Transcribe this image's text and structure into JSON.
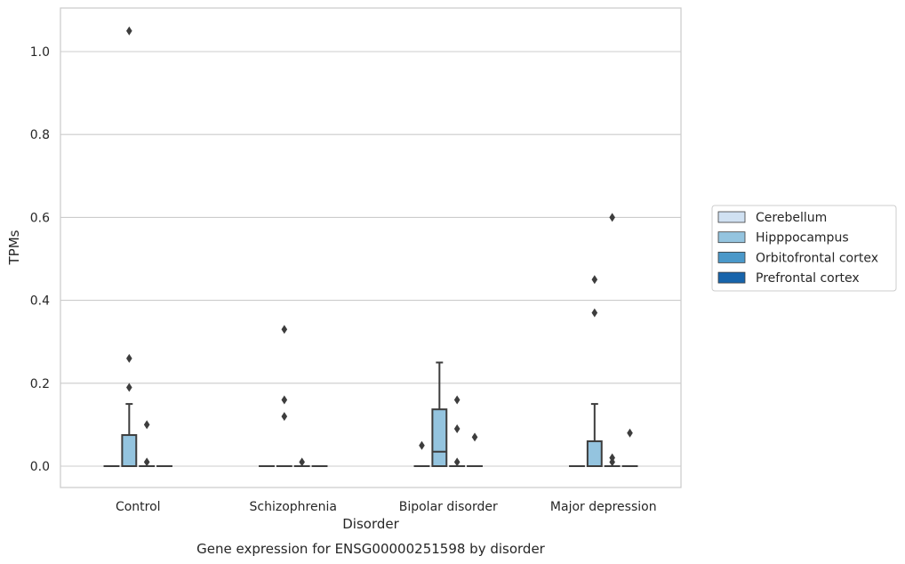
{
  "chart_data": {
    "type": "box",
    "caption": "Gene expression for ENSG00000251598 by disorder",
    "xlabel": "Disorder",
    "ylabel": "TPMs",
    "ylim": [
      -0.05,
      1.1
    ],
    "yticks": [
      0.0,
      0.2,
      0.4,
      0.6,
      0.8,
      1.0
    ],
    "ytick_labels": [
      "0.0",
      "0.2",
      "0.4",
      "0.6",
      "0.8",
      "1.0"
    ],
    "grid": "horizontal",
    "legend_position": "right",
    "categories": [
      "Control",
      "Schizophrenia",
      "Bipolar disorder",
      "Major depression"
    ],
    "series": [
      {
        "name": "Cerebellum",
        "color": "#d0e1f2",
        "boxes": [
          {
            "q1": 0,
            "median": 0,
            "q3": 0,
            "whisker_low": 0,
            "whisker_high": 0,
            "outliers": []
          },
          {
            "q1": 0,
            "median": 0,
            "q3": 0,
            "whisker_low": 0,
            "whisker_high": 0,
            "outliers": []
          },
          {
            "q1": 0,
            "median": 0,
            "q3": 0,
            "whisker_low": 0,
            "whisker_high": 0,
            "outliers": []
          },
          {
            "q1": 0,
            "median": 0,
            "q3": 0,
            "whisker_low": 0,
            "whisker_high": 0,
            "outliers": []
          }
        ]
      },
      {
        "name": "Hipppocampus",
        "color": "#94c4df",
        "boxes": [
          {
            "q1": 0,
            "median": 0,
            "q3": 0.075,
            "whisker_low": 0,
            "whisker_high": 0.15,
            "outliers": [
              1.05,
              0.26,
              0.19
            ]
          },
          {
            "q1": 0,
            "median": 0,
            "q3": 0,
            "whisker_low": 0,
            "whisker_high": 0,
            "outliers": [
              0.33,
              0.16,
              0.12
            ]
          },
          {
            "q1": 0,
            "median": 0.035,
            "q3": 0.137,
            "whisker_low": 0,
            "whisker_high": 0.25,
            "outliers": []
          },
          {
            "q1": 0,
            "median": 0,
            "q3": 0.06,
            "whisker_low": 0,
            "whisker_high": 0.15,
            "outliers": [
              0.45,
              0.37
            ]
          }
        ]
      },
      {
        "name": "Orbitofrontal cortex",
        "color": "#4a98c9",
        "boxes": [
          {
            "q1": 0,
            "median": 0,
            "q3": 0,
            "whisker_low": 0,
            "whisker_high": 0,
            "outliers": [
              0.1,
              0.01
            ]
          },
          {
            "q1": 0,
            "median": 0,
            "q3": 0,
            "whisker_low": 0,
            "whisker_high": 0,
            "outliers": [
              0.01
            ]
          },
          {
            "q1": 0,
            "median": 0,
            "q3": 0,
            "whisker_low": 0,
            "whisker_high": 0,
            "outliers": [
              0.16,
              0.09,
              0.01
            ]
          },
          {
            "q1": 0,
            "median": 0,
            "q3": 0,
            "whisker_low": 0,
            "whisker_high": 0,
            "outliers": [
              0.6,
              0.02,
              0.01
            ]
          }
        ]
      },
      {
        "name": "Prefrontal cortex",
        "color": "#1764ab",
        "boxes": [
          {
            "q1": 0,
            "median": 0,
            "q3": 0,
            "whisker_low": 0,
            "whisker_high": 0,
            "outliers": []
          },
          {
            "q1": 0,
            "median": 0,
            "q3": 0,
            "whisker_low": 0,
            "whisker_high": 0,
            "outliers": []
          },
          {
            "q1": 0,
            "median": 0,
            "q3": 0,
            "whisker_low": 0,
            "whisker_high": 0,
            "outliers": [
              0.07
            ]
          },
          {
            "q1": 0,
            "median": 0,
            "q3": 0,
            "whisker_low": 0,
            "whisker_high": 0,
            "outliers": [
              0.08
            ]
          }
        ]
      }
    ],
    "extra_outliers": [
      {
        "category": "Bipolar disorder",
        "series": "Cerebellum",
        "values": [
          0.05
        ]
      }
    ]
  }
}
